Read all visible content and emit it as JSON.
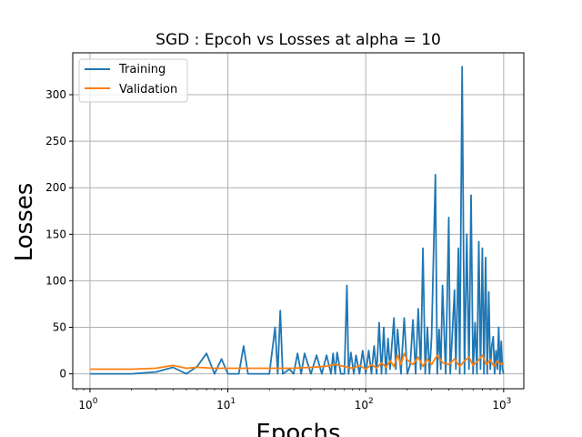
{
  "chart_data": {
    "type": "line",
    "title": "SGD : Epcoh vs Losses at alpha = 10",
    "xlabel": "Epochs",
    "ylabel": "Losses",
    "xscale": "log",
    "xlim": [
      0.75,
      1400
    ],
    "ylim": [
      -16,
      345
    ],
    "grid": true,
    "legend_position": "top-left",
    "x_ticks": [
      {
        "value": 1,
        "label": "10",
        "exp": "0"
      },
      {
        "value": 10,
        "label": "10",
        "exp": "1"
      },
      {
        "value": 100,
        "label": "10",
        "exp": "2"
      },
      {
        "value": 1000,
        "label": "10",
        "exp": "3"
      }
    ],
    "y_ticks": [
      {
        "value": 0,
        "label": "0"
      },
      {
        "value": 50,
        "label": "50"
      },
      {
        "value": 100,
        "label": "100"
      },
      {
        "value": 150,
        "label": "150"
      },
      {
        "value": 200,
        "label": "200"
      },
      {
        "value": 250,
        "label": "250"
      },
      {
        "value": 300,
        "label": "300"
      }
    ],
    "series": [
      {
        "name": "Training",
        "color": "#1f77b4",
        "x": [
          1,
          2,
          3,
          4,
          5,
          6,
          7,
          8,
          9,
          10,
          12,
          13,
          14,
          20,
          22,
          23,
          24,
          25,
          28,
          30,
          32,
          34,
          36,
          40,
          44,
          48,
          52,
          56,
          58,
          60,
          62,
          66,
          70,
          73,
          75,
          78,
          82,
          85,
          90,
          95,
          100,
          105,
          110,
          115,
          120,
          125,
          130,
          135,
          140,
          145,
          150,
          160,
          165,
          170,
          180,
          190,
          200,
          210,
          220,
          230,
          240,
          250,
          260,
          270,
          280,
          290,
          300,
          320,
          330,
          340,
          350,
          360,
          380,
          400,
          410,
          420,
          440,
          450,
          470,
          480,
          500,
          520,
          540,
          560,
          580,
          600,
          620,
          640,
          660,
          680,
          700,
          720,
          740,
          760,
          780,
          800,
          820,
          840,
          860,
          880,
          900,
          920,
          940,
          960,
          980,
          1000
        ],
        "y": [
          0,
          0,
          2,
          7,
          0,
          8,
          22,
          0,
          16,
          0,
          0,
          30,
          0,
          0,
          50,
          0,
          68,
          0,
          5,
          0,
          22,
          0,
          22,
          0,
          20,
          0,
          20,
          0,
          22,
          0,
          23,
          0,
          0,
          95,
          0,
          23,
          0,
          20,
          0,
          25,
          0,
          25,
          0,
          30,
          0,
          55,
          0,
          50,
          0,
          38,
          5,
          60,
          5,
          48,
          0,
          60,
          0,
          10,
          58,
          0,
          70,
          5,
          135,
          0,
          50,
          0,
          40,
          214,
          0,
          48,
          5,
          95,
          0,
          168,
          0,
          30,
          90,
          5,
          135,
          0,
          330,
          0,
          150,
          5,
          192,
          0,
          55,
          0,
          142,
          5,
          135,
          0,
          125,
          0,
          88,
          5,
          30,
          40,
          0,
          25,
          5,
          50,
          0,
          35,
          5,
          0
        ]
      },
      {
        "name": "Validation",
        "color": "#ff7f0e",
        "x": [
          1,
          2,
          3,
          4,
          5,
          6,
          8,
          10,
          20,
          30,
          40,
          50,
          60,
          70,
          80,
          90,
          100,
          110,
          120,
          130,
          140,
          150,
          160,
          170,
          180,
          190,
          200,
          220,
          240,
          260,
          280,
          300,
          330,
          360,
          400,
          440,
          480,
          520,
          560,
          600,
          650,
          700,
          750,
          800,
          850,
          900,
          950,
          1000
        ],
        "y": [
          5,
          5,
          6,
          9,
          6,
          7,
          6,
          6,
          6,
          6,
          7,
          8,
          10,
          8,
          6,
          9,
          5,
          10,
          6,
          12,
          7,
          14,
          8,
          20,
          10,
          22,
          15,
          10,
          18,
          8,
          16,
          10,
          20,
          12,
          10,
          16,
          8,
          14,
          18,
          9,
          14,
          20,
          10,
          15,
          8,
          14,
          10,
          12
        ]
      }
    ]
  }
}
